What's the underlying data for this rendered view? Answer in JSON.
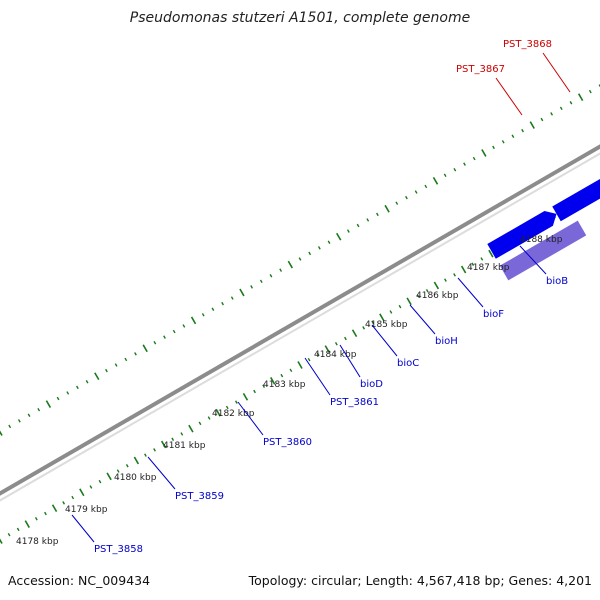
{
  "title": "Pseudomonas stutzeri A1501, complete genome",
  "footer": {
    "accession": "Accession: NC_009434",
    "summary": "Topology: circular; Length: 4,567,418 bp; Genes: 4,201"
  },
  "colors": {
    "gene_blue": "#0000ee",
    "gene_lavender": "#7b68d8",
    "gene_red": "#ee0000",
    "gene_gray": "#c8c8c8",
    "gene_dark": "#000080",
    "tick_green": "#1a7a1a",
    "label_blue": "#0000cc",
    "label_red": "#cc0000"
  },
  "scale_ticks": [
    "4178 kbp",
    "4179 kbp",
    "4180 kbp",
    "4181 kbp",
    "4182 kbp",
    "4183 kbp",
    "4184 kbp",
    "4185 kbp",
    "4186 kbp",
    "4187 kbp",
    "4188 kbp"
  ],
  "gene_labels": [
    {
      "name": "PST_3858",
      "color": "blue"
    },
    {
      "name": "PST_3859",
      "color": "blue"
    },
    {
      "name": "PST_3860",
      "color": "blue"
    },
    {
      "name": "PST_3861",
      "color": "blue"
    },
    {
      "name": "bioD",
      "color": "blue"
    },
    {
      "name": "bioC",
      "color": "blue"
    },
    {
      "name": "bioH",
      "color": "blue"
    },
    {
      "name": "bioF",
      "color": "blue"
    },
    {
      "name": "bioB",
      "color": "blue"
    },
    {
      "name": "PST_3867",
      "color": "red"
    },
    {
      "name": "PST_3868",
      "color": "red"
    }
  ]
}
